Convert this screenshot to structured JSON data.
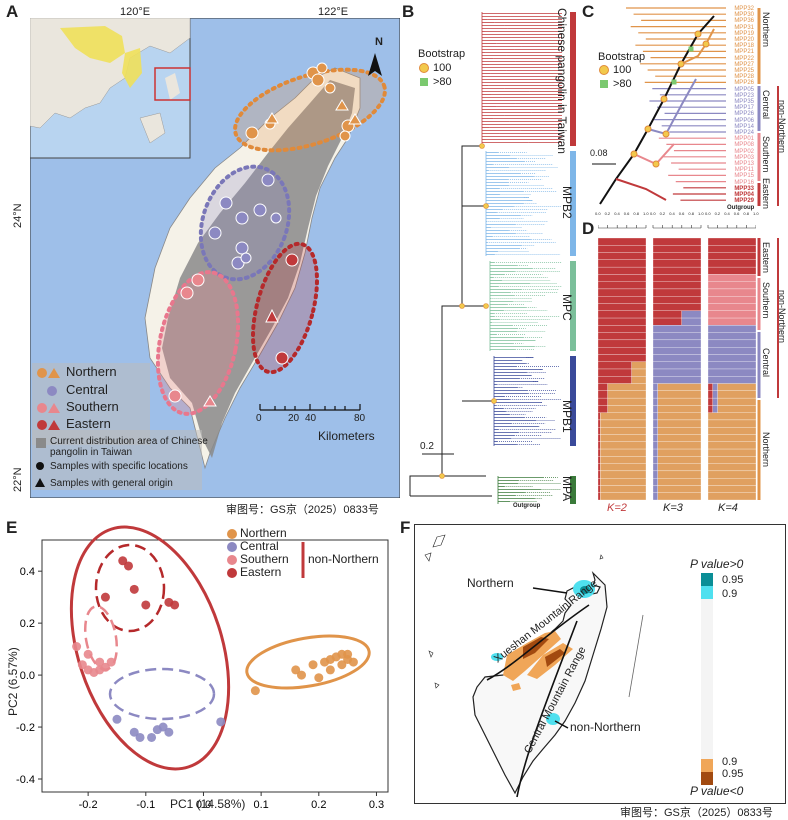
{
  "panels": {
    "A": "A",
    "B": "B",
    "C": "C",
    "D": "D",
    "E": "E",
    "F": "F"
  },
  "panelA": {
    "lon_ticks": [
      "120°E",
      "122°E"
    ],
    "lat_ticks": [
      "24°N",
      "22°N"
    ],
    "north_label": "N",
    "legend": {
      "northern": "Northern",
      "central": "Central",
      "southern": "Southern",
      "eastern": "Eastern",
      "distribution": "Current distribution area of Chinese pangolin in Taiwan",
      "specific": "Samples with specific locations",
      "general": "Samples with general origin"
    },
    "scale_ticks": [
      "0",
      "20",
      "40",
      "80"
    ],
    "scale_unit": "Kilometers",
    "approval": "审图号：GS京（2025）0833号"
  },
  "panelB": {
    "legend_title": "Bootstrap",
    "legend_100": "100",
    "legend_80": ">80",
    "clade_labels": [
      "Chinese pangolin in Taiwan",
      "MPB2",
      "MPC",
      "MPB1",
      "MPA"
    ],
    "scale": "0.2",
    "outgroup": "Outgroup"
  },
  "panelC": {
    "legend_title": "Bootstrap",
    "legend_100": "100",
    "legend_80": ">80",
    "scale": "0.08",
    "tips": [
      "MPP32",
      "MPP30",
      "MPP36",
      "MPP31",
      "MPP19",
      "MPP20",
      "MPP18",
      "MPP21",
      "MPP22",
      "MPP27",
      "MPP25",
      "MPP28",
      "MPP26",
      "MPP05",
      "MPP23",
      "MPP35",
      "MPP17",
      "MPP26",
      "MPP06",
      "MPP14",
      "MPP24",
      "MPP01",
      "MPP08",
      "MPP02",
      "MPP03",
      "MPP13",
      "MPP11",
      "MPP15",
      "MPP16",
      "MPP33",
      "MPP04",
      "MPP29"
    ],
    "outgroup": "Outgroup",
    "groups": [
      "Northern",
      "Central",
      "Southern",
      "Eastern"
    ],
    "non_northern": "non-Northern"
  },
  "panelD": {
    "axis_ticks": [
      "0.0",
      "0.2",
      "0.4",
      "0.6",
      "0.8",
      "1.0"
    ],
    "k_labels": [
      "K=2",
      "K=3",
      "K=4"
    ],
    "groups": [
      "Eastern",
      "Southern",
      "Central",
      "Northern"
    ],
    "non_northern": "non-Northern",
    "colors": {
      "red": "#c0393b",
      "pink": "#e8878d",
      "purple": "#8c89c2",
      "orange": "#e0a060"
    }
  },
  "panelE": {
    "legend": [
      "Northern",
      "Central",
      "Southern",
      "Eastern"
    ],
    "non_northern": "non-Northern",
    "xlabel": "PC1 (14.58%)",
    "ylabel": "PC2 (6.57%)",
    "x_ticks": [
      "-0.2",
      "-0.1",
      "0.0",
      "0.1",
      "0.2",
      "0.3"
    ],
    "y_ticks": [
      "0.4",
      "0.2",
      "0.0",
      "-0.2",
      "-0.4"
    ],
    "colors": {
      "northern": "#e0944a",
      "central": "#8c89c2",
      "southern": "#e8878d",
      "eastern": "#c0393b"
    }
  },
  "chart_data": {
    "type": "scatter",
    "xlabel": "PC1 (14.58%)",
    "ylabel": "PC2 (6.57%)",
    "xlim": [
      -0.28,
      0.32
    ],
    "ylim": [
      -0.45,
      0.52
    ],
    "series": [
      {
        "name": "Northern",
        "points": [
          [
            0.09,
            -0.06
          ],
          [
            0.16,
            0.02
          ],
          [
            0.17,
            0.0
          ],
          [
            0.19,
            0.04
          ],
          [
            0.2,
            -0.01
          ],
          [
            0.21,
            0.05
          ],
          [
            0.22,
            0.02
          ],
          [
            0.22,
            0.06
          ],
          [
            0.23,
            0.07
          ],
          [
            0.24,
            0.04
          ],
          [
            0.24,
            0.08
          ],
          [
            0.25,
            0.06
          ],
          [
            0.25,
            0.08
          ],
          [
            0.26,
            0.05
          ]
        ]
      },
      {
        "name": "Central",
        "points": [
          [
            -0.15,
            -0.17
          ],
          [
            -0.12,
            -0.22
          ],
          [
            -0.11,
            -0.24
          ],
          [
            -0.09,
            -0.24
          ],
          [
            -0.08,
            -0.21
          ],
          [
            -0.07,
            -0.2
          ],
          [
            -0.06,
            -0.22
          ],
          [
            0.03,
            -0.18
          ]
        ]
      },
      {
        "name": "Southern",
        "points": [
          [
            -0.22,
            0.11
          ],
          [
            -0.21,
            0.04
          ],
          [
            -0.2,
            0.08
          ],
          [
            -0.2,
            0.02
          ],
          [
            -0.19,
            0.01
          ],
          [
            -0.18,
            0.05
          ],
          [
            -0.18,
            0.02
          ],
          [
            -0.17,
            0.03
          ],
          [
            -0.16,
            0.05
          ]
        ]
      },
      {
        "name": "Eastern",
        "points": [
          [
            -0.14,
            0.44
          ],
          [
            -0.13,
            0.42
          ],
          [
            -0.12,
            0.33
          ],
          [
            -0.1,
            0.27
          ],
          [
            -0.06,
            0.28
          ],
          [
            -0.05,
            0.27
          ],
          [
            -0.17,
            0.3
          ]
        ]
      }
    ]
  },
  "panelF": {
    "legend_top": "P value>0",
    "legend_bottom": "P value<0",
    "ticks": [
      "0.95",
      "0.9",
      "0.9",
      "0.95"
    ],
    "labels": {
      "northern": "Northern",
      "non_northern": "non-Northern",
      "xueshan": "Xueshan Mountain Range",
      "central": "Central Mountain Range"
    },
    "approval": "审图号：GS京（2025）0833号"
  }
}
